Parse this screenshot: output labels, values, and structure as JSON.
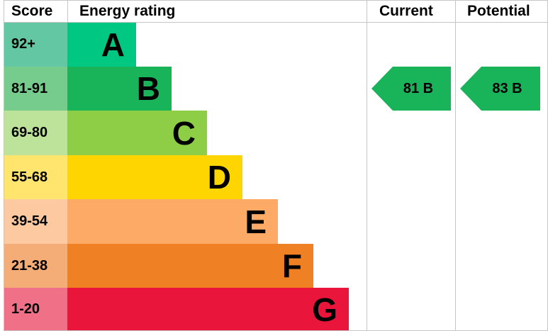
{
  "chart_data": {
    "type": "bar",
    "headers": {
      "score": "Score",
      "rating": "Energy rating",
      "current": "Current",
      "potential": "Potential"
    },
    "bands": [
      {
        "score": "92+",
        "letter": "A",
        "color": "#00c781",
        "light": "#64c7a3"
      },
      {
        "score": "81-91",
        "letter": "B",
        "color": "#19b459",
        "light": "#75cc8c"
      },
      {
        "score": "69-80",
        "letter": "C",
        "color": "#8dce46",
        "light": "#bde39a"
      },
      {
        "score": "55-68",
        "letter": "D",
        "color": "#ffd500",
        "light": "#ffe46e"
      },
      {
        "score": "39-54",
        "letter": "E",
        "color": "#fcaa65",
        "light": "#fdc9a0"
      },
      {
        "score": "21-38",
        "letter": "F",
        "color": "#ef8023",
        "light": "#f4ad76"
      },
      {
        "score": "1-20",
        "letter": "G",
        "color": "#e9153b",
        "light": "#f07088"
      }
    ],
    "current": {
      "value": 81,
      "letter": "B",
      "label": "81  B",
      "color": "#19b459"
    },
    "potential": {
      "value": 83,
      "letter": "B",
      "label": "83  B",
      "color": "#19b459"
    }
  }
}
